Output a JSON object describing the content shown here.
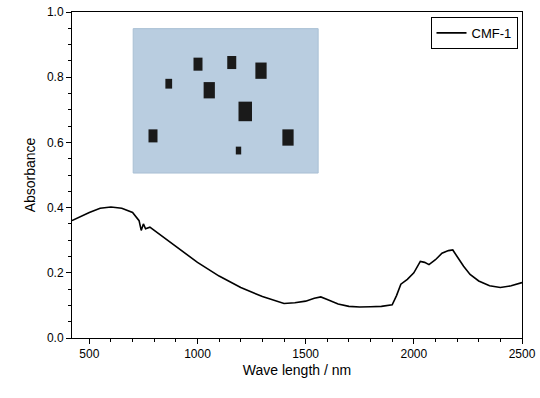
{
  "chart_data": {
    "type": "line",
    "x_label": "Wave length / nm",
    "y_label": "Absorbance",
    "x": [
      420,
      450,
      500,
      550,
      600,
      650,
      700,
      730,
      740,
      750,
      760,
      780,
      800,
      850,
      900,
      950,
      1000,
      1100,
      1200,
      1300,
      1400,
      1450,
      1500,
      1540,
      1570,
      1600,
      1650,
      1700,
      1750,
      1800,
      1850,
      1900,
      1920,
      1940,
      1970,
      2000,
      2030,
      2050,
      2070,
      2100,
      2130,
      2160,
      2180,
      2200,
      2230,
      2260,
      2300,
      2350,
      2400,
      2450,
      2500
    ],
    "series": [
      {
        "name": "CMF-1",
        "color": "#000000",
        "values": [
          0.36,
          0.37,
          0.385,
          0.398,
          0.402,
          0.398,
          0.385,
          0.36,
          0.33,
          0.35,
          0.335,
          0.34,
          0.33,
          0.305,
          0.28,
          0.255,
          0.232,
          0.19,
          0.155,
          0.127,
          0.106,
          0.108,
          0.113,
          0.122,
          0.126,
          0.118,
          0.104,
          0.097,
          0.095,
          0.096,
          0.097,
          0.102,
          0.13,
          0.165,
          0.18,
          0.2,
          0.235,
          0.232,
          0.225,
          0.24,
          0.26,
          0.268,
          0.27,
          0.25,
          0.22,
          0.195,
          0.175,
          0.16,
          0.155,
          0.16,
          0.17
        ]
      }
    ],
    "xlim": [
      420,
      2500
    ],
    "xticks": [
      500,
      1000,
      1500,
      2000,
      2500
    ],
    "ylim": [
      0,
      1
    ],
    "yticks": [
      {
        "value": 0,
        "label": "0.0"
      },
      0.2,
      0.4,
      0.6,
      0.8,
      {
        "value": 1,
        "label": "1.0"
      }
    ],
    "legend": "top right",
    "grid": false
  }
}
